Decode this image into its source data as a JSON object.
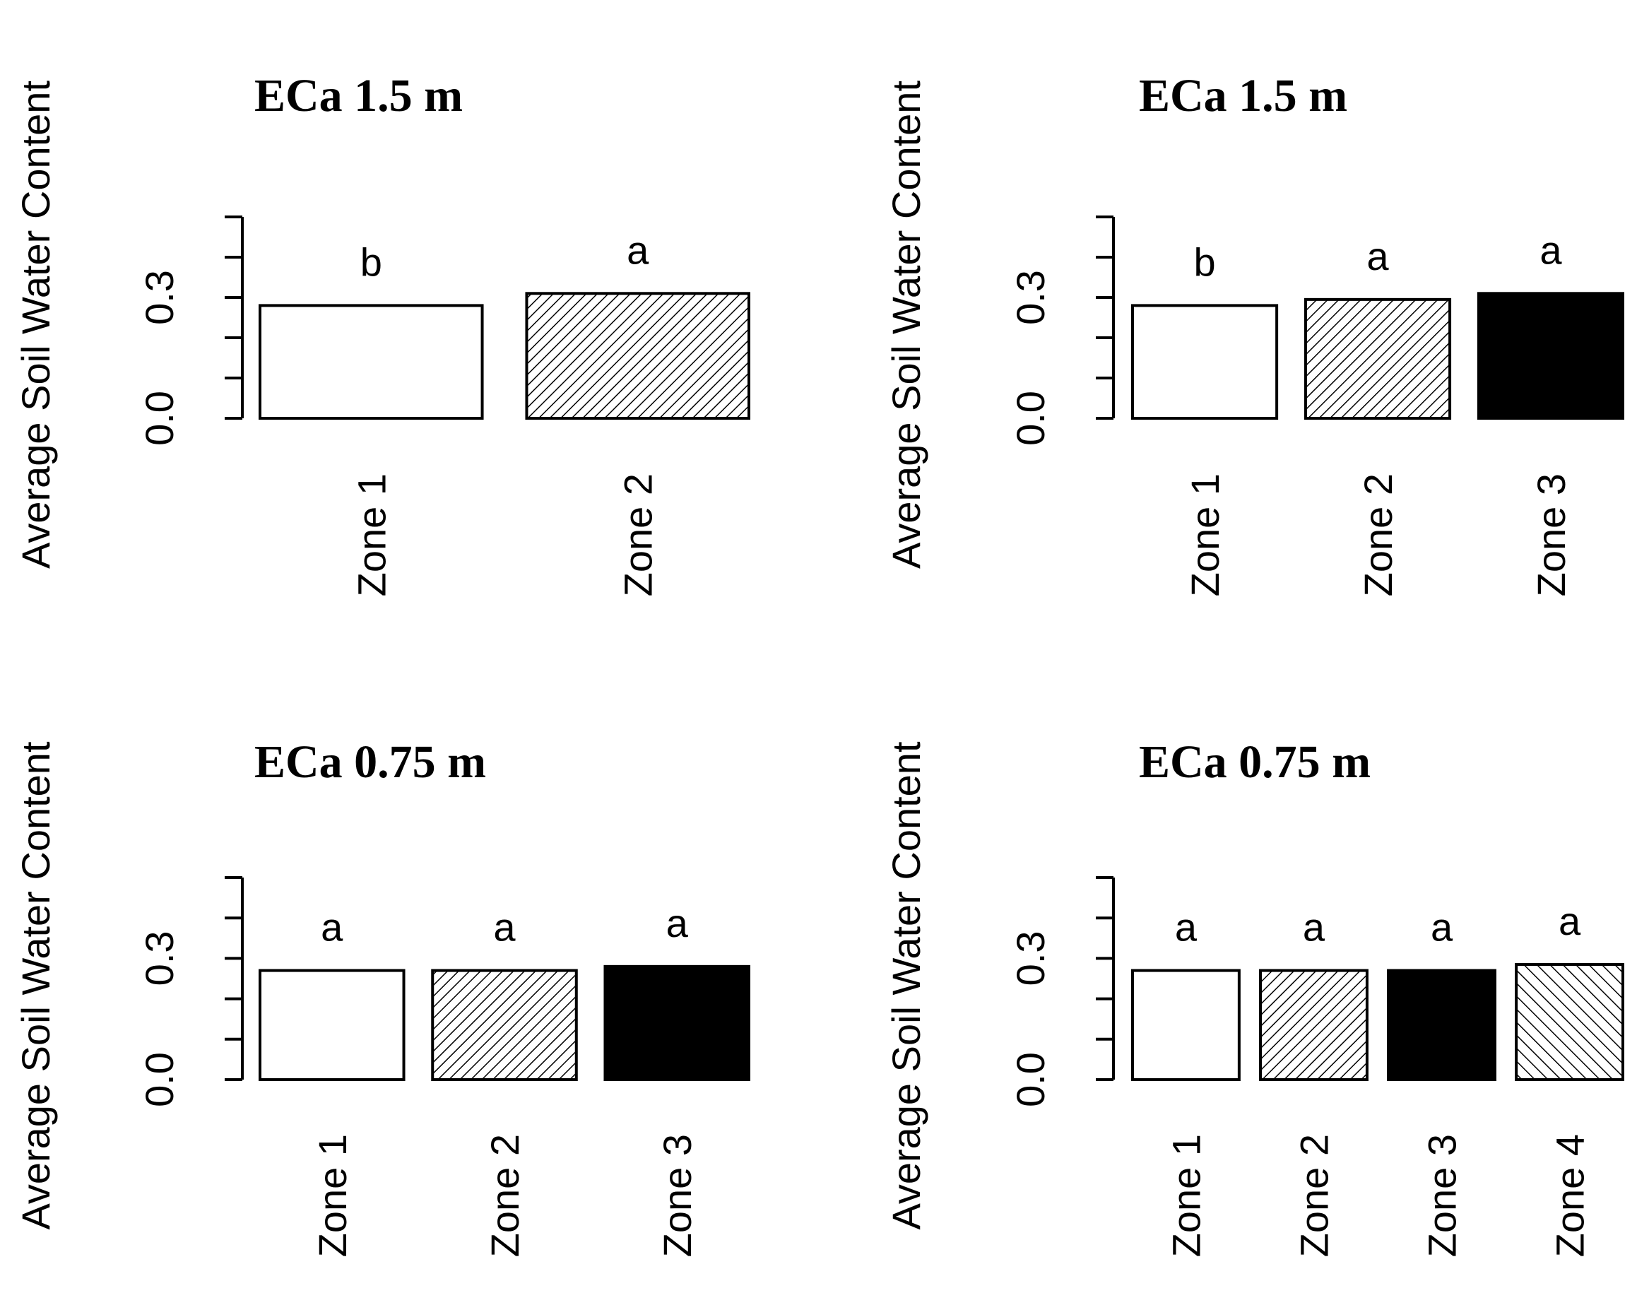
{
  "chart_data": [
    {
      "type": "bar",
      "title": "ECa 1.5 m",
      "ylabel": "Average Soil Water Content",
      "ylim": [
        0,
        0.5
      ],
      "yticks": [
        "0.0",
        "0.3"
      ],
      "categories": [
        "Zone 1",
        "Zone 2"
      ],
      "values": [
        0.28,
        0.31
      ],
      "significance": [
        "b",
        "a"
      ],
      "fills": [
        "white",
        "hatch-ne-dense"
      ]
    },
    {
      "type": "bar",
      "title": "ECa 1.5 m",
      "ylabel": "Average Soil Water Content",
      "ylim": [
        0,
        0.5
      ],
      "yticks": [
        "0.0",
        "0.3"
      ],
      "categories": [
        "Zone 1",
        "Zone 2",
        "Zone 3"
      ],
      "values": [
        0.28,
        0.295,
        0.31
      ],
      "significance": [
        "b",
        "a",
        "a"
      ],
      "fills": [
        "white",
        "hatch-ne-dense",
        "black"
      ]
    },
    {
      "type": "bar",
      "title": "ECa 0.75 m",
      "ylabel": "Average Soil Water Content",
      "ylim": [
        0,
        0.5
      ],
      "yticks": [
        "0.0",
        "0.3"
      ],
      "categories": [
        "Zone 1",
        "Zone 2",
        "Zone 3"
      ],
      "values": [
        0.27,
        0.27,
        0.28
      ],
      "significance": [
        "a",
        "a",
        "a"
      ],
      "fills": [
        "white",
        "hatch-ne-dense",
        "black"
      ]
    },
    {
      "type": "bar",
      "title": "ECa 0.75 m",
      "ylabel": "Average Soil Water Content",
      "ylim": [
        0,
        0.5
      ],
      "yticks": [
        "0.0",
        "0.3"
      ],
      "categories": [
        "Zone 1",
        "Zone 2",
        "Zone 3",
        "Zone 4"
      ],
      "values": [
        0.27,
        0.27,
        0.27,
        0.285
      ],
      "significance": [
        "a",
        "a",
        "a",
        "a"
      ],
      "fills": [
        "white",
        "hatch-ne-dense",
        "black",
        "hatch-nw"
      ]
    }
  ]
}
